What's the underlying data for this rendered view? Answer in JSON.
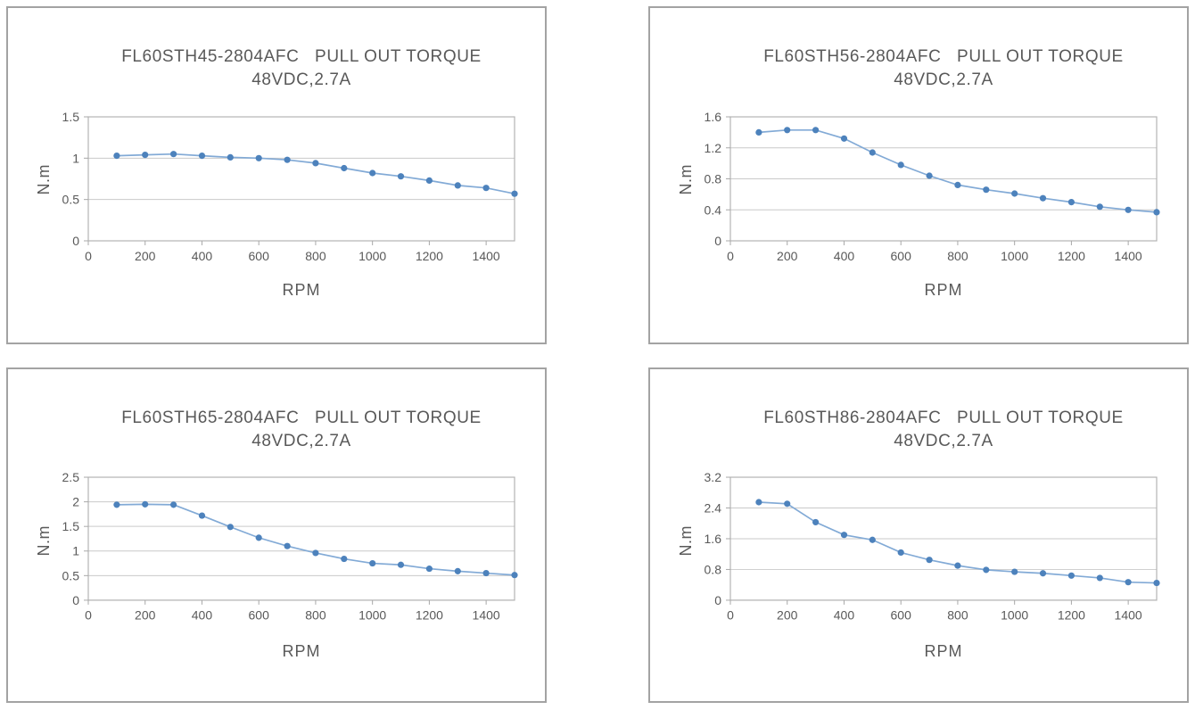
{
  "styles": {
    "marker_color": "#4d82bc",
    "line_color": "#82aad6",
    "grid_color": "#c9c9c9",
    "plot_border_color": "#b3b3b3",
    "tick_color": "#a8a8a8",
    "text_color": "#595959",
    "box_border_color": "#a3a3a3",
    "background": "#ffffff"
  },
  "chart_data": [
    {
      "type": "line",
      "title": "FL60STH45-2804AFC   PULL OUT TORQUE",
      "subtitle": "48VDC,2.7A",
      "xlabel": "RPM",
      "ylabel": "N.m",
      "legend": "none",
      "grid": "horizontal",
      "x": [
        100,
        200,
        300,
        400,
        500,
        600,
        700,
        800,
        900,
        1000,
        1100,
        1200,
        1300,
        1400,
        1500
      ],
      "values": [
        1.03,
        1.04,
        1.05,
        1.03,
        1.01,
        1.0,
        0.98,
        0.94,
        0.88,
        0.82,
        0.78,
        0.73,
        0.67,
        0.64,
        0.57
      ],
      "xlim": [
        0,
        1500
      ],
      "ylim": [
        0,
        1.5
      ],
      "xticks": [
        0,
        200,
        400,
        600,
        800,
        1000,
        1200,
        1400
      ],
      "yticks": [
        0,
        0.5,
        1,
        1.5
      ],
      "ytick_labels": [
        "0",
        "0.5",
        "1",
        "1.5"
      ]
    },
    {
      "type": "line",
      "title": "FL60STH56-2804AFC   PULL OUT TORQUE",
      "subtitle": "48VDC,2.7A",
      "xlabel": "RPM",
      "ylabel": "N.m",
      "legend": "none",
      "grid": "horizontal",
      "x": [
        100,
        200,
        300,
        400,
        500,
        600,
        700,
        800,
        900,
        1000,
        1100,
        1200,
        1300,
        1400,
        1500
      ],
      "values": [
        1.4,
        1.43,
        1.43,
        1.32,
        1.14,
        0.98,
        0.84,
        0.72,
        0.66,
        0.61,
        0.55,
        0.5,
        0.44,
        0.4,
        0.37
      ],
      "xlim": [
        0,
        1500
      ],
      "ylim": [
        0,
        1.6
      ],
      "xticks": [
        0,
        200,
        400,
        600,
        800,
        1000,
        1200,
        1400
      ],
      "yticks": [
        0,
        0.4,
        0.8,
        1.2,
        1.6
      ],
      "ytick_labels": [
        "0",
        "0.4",
        "0.8",
        "1.2",
        "1.6"
      ]
    },
    {
      "type": "line",
      "title": "FL60STH65-2804AFC   PULL OUT TORQUE",
      "subtitle": "48VDC,2.7A",
      "xlabel": "RPM",
      "ylabel": "N.m",
      "legend": "none",
      "grid": "horizontal",
      "x": [
        100,
        200,
        300,
        400,
        500,
        600,
        700,
        800,
        900,
        1000,
        1100,
        1200,
        1300,
        1400,
        1500
      ],
      "values": [
        1.94,
        1.95,
        1.94,
        1.72,
        1.49,
        1.27,
        1.1,
        0.96,
        0.84,
        0.75,
        0.72,
        0.64,
        0.59,
        0.55,
        0.51
      ],
      "xlim": [
        0,
        1500
      ],
      "ylim": [
        0,
        2.5
      ],
      "xticks": [
        0,
        200,
        400,
        600,
        800,
        1000,
        1200,
        1400
      ],
      "yticks": [
        0,
        0.5,
        1,
        1.5,
        2,
        2.5
      ],
      "ytick_labels": [
        "0",
        "0.5",
        "1",
        "1.5",
        "2",
        "2.5"
      ]
    },
    {
      "type": "line",
      "title": "FL60STH86-2804AFC   PULL OUT TORQUE",
      "subtitle": "48VDC,2.7A",
      "xlabel": "RPM",
      "ylabel": "N.m",
      "legend": "none",
      "grid": "horizontal",
      "x": [
        100,
        200,
        300,
        400,
        500,
        600,
        700,
        800,
        900,
        1000,
        1100,
        1200,
        1300,
        1400,
        1500
      ],
      "values": [
        2.55,
        2.51,
        2.03,
        1.7,
        1.57,
        1.24,
        1.05,
        0.9,
        0.79,
        0.74,
        0.7,
        0.64,
        0.58,
        0.47,
        0.45
      ],
      "xlim": [
        0,
        1500
      ],
      "ylim": [
        0,
        3.2
      ],
      "xticks": [
        0,
        200,
        400,
        600,
        800,
        1000,
        1200,
        1400
      ],
      "yticks": [
        0,
        0.8,
        1.6,
        2.4,
        3.2
      ],
      "ytick_labels": [
        "0",
        "0.8",
        "1.6",
        "2.4",
        "3.2"
      ]
    }
  ]
}
